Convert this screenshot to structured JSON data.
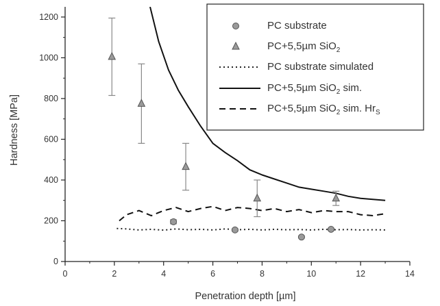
{
  "chart_data": {
    "type": "scatter",
    "xlabel": "Penetration depth [µm]",
    "ylabel": "Hardness [MPa]",
    "xlim": [
      0,
      14
    ],
    "ylim": [
      0,
      1250
    ],
    "xticks": [
      0,
      2,
      4,
      6,
      8,
      10,
      12,
      14
    ],
    "yticks": [
      0,
      200,
      400,
      600,
      800,
      1000,
      1200
    ],
    "grid": false,
    "legend_position": "top-right",
    "series": [
      {
        "name": "PC substrate",
        "kind": "scatter",
        "marker": "circle",
        "color": "#9a9a9a",
        "points": [
          {
            "x": 4.4,
            "y": 195,
            "err": 10
          },
          {
            "x": 6.9,
            "y": 155,
            "err": 5
          },
          {
            "x": 9.6,
            "y": 120,
            "err": 5
          },
          {
            "x": 10.8,
            "y": 158,
            "err": 5
          }
        ]
      },
      {
        "name": "PC+5,5µm SiO₂",
        "kind": "scatter",
        "marker": "triangle",
        "color": "#9a9a9a",
        "points": [
          {
            "x": 1.9,
            "y": 1005,
            "err": 190
          },
          {
            "x": 3.1,
            "y": 775,
            "err": 195
          },
          {
            "x": 4.9,
            "y": 465,
            "err": 115
          },
          {
            "x": 7.8,
            "y": 310,
            "err": 90
          },
          {
            "x": 11.0,
            "y": 310,
            "err": 35
          }
        ]
      },
      {
        "name": "PC substrate simulated",
        "kind": "line",
        "dash": "dotted",
        "color": "#222222",
        "x": [
          2.1,
          2.5,
          3.0,
          3.5,
          4.0,
          4.5,
          5.0,
          5.5,
          6.0,
          6.5,
          7.0,
          7.5,
          8.0,
          8.5,
          9.0,
          9.5,
          10.0,
          10.5,
          11.0,
          11.5,
          12.0,
          12.5,
          13.0
        ],
        "y": [
          162,
          160,
          155,
          158,
          154,
          160,
          156,
          158,
          155,
          160,
          156,
          158,
          155,
          158,
          156,
          157,
          155,
          158,
          156,
          157,
          155,
          156,
          155
        ]
      },
      {
        "name": "PC+5,5µm SiO₂ sim.",
        "kind": "line",
        "dash": "solid",
        "color": "#111111",
        "x": [
          3.45,
          3.8,
          4.2,
          4.6,
          5.0,
          5.5,
          6.0,
          6.5,
          7.0,
          7.5,
          8.0,
          8.5,
          9.0,
          9.5,
          10.0,
          10.5,
          11.0,
          11.5,
          12.0,
          12.5,
          13.0
        ],
        "y": [
          1250,
          1080,
          940,
          840,
          760,
          665,
          580,
          535,
          495,
          450,
          425,
          405,
          385,
          365,
          355,
          345,
          335,
          320,
          310,
          305,
          300
        ]
      },
      {
        "name": "PC+5,5µm SiO₂ sim. Hrₛ",
        "kind": "line",
        "dash": "dashed",
        "color": "#111111",
        "x": [
          2.2,
          2.5,
          3.0,
          3.5,
          4.0,
          4.5,
          5.0,
          5.5,
          6.0,
          6.5,
          7.0,
          7.5,
          8.0,
          8.5,
          9.0,
          9.5,
          10.0,
          10.5,
          11.0,
          11.5,
          12.0,
          12.5,
          13.0
        ],
        "y": [
          200,
          230,
          250,
          225,
          250,
          265,
          245,
          260,
          270,
          250,
          265,
          260,
          250,
          260,
          245,
          255,
          240,
          250,
          245,
          245,
          230,
          225,
          235
        ]
      }
    ]
  },
  "legend": {
    "items": [
      {
        "label": "PC substrate"
      },
      {
        "label": "PC+5,5µm SiO",
        "sub": "2",
        "tail": ""
      },
      {
        "label": "PC substrate simulated"
      },
      {
        "label": "PC+5,5µm SiO",
        "sub": "2",
        "tail": " sim."
      },
      {
        "label": "PC+5,5µm SiO",
        "sub": "2",
        "tail": " sim. Hr",
        "sub2": "S"
      }
    ]
  }
}
